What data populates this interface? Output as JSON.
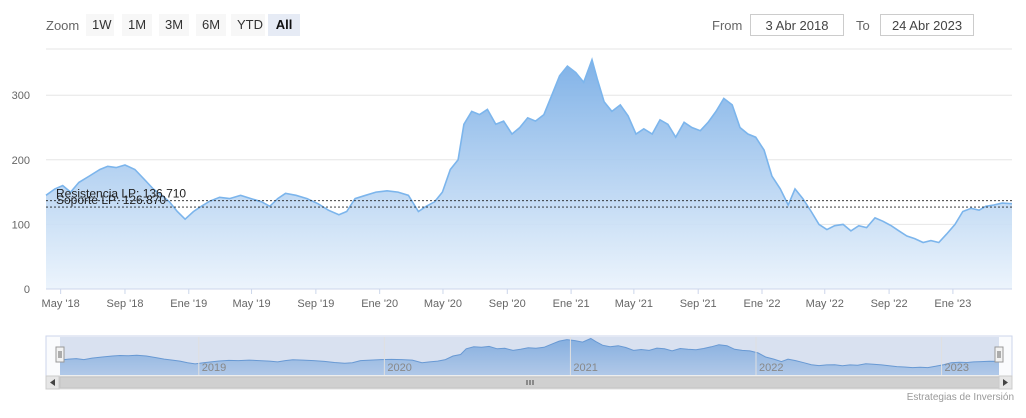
{
  "toolbar": {
    "zoom_label": "Zoom",
    "buttons": [
      "1W",
      "1M",
      "3M",
      "6M",
      "YTD",
      "All"
    ],
    "active": "All",
    "from_label": "From",
    "from_value": "3 Abr 2018",
    "to_label": "To",
    "to_value": "24 Abr 2023"
  },
  "credits": "Estrategias de Inversión",
  "colors": {
    "line": "#7cb5ec",
    "fill_top": "#7aaee6",
    "fill_bottom": "#eaf3fc",
    "grid": "#e6e6e6"
  },
  "chart_data": {
    "type": "area",
    "x_start": "2018-04-03",
    "x_end": "2023-04-24",
    "ylim": [
      0,
      370
    ],
    "yticks": [
      0,
      100,
      200,
      300
    ],
    "xticks": [
      {
        "date": "2018-05-01",
        "label": "May '18"
      },
      {
        "date": "2018-09-01",
        "label": "Sep '18"
      },
      {
        "date": "2019-01-01",
        "label": "Ene '19"
      },
      {
        "date": "2019-05-01",
        "label": "May '19"
      },
      {
        "date": "2019-09-01",
        "label": "Sep '19"
      },
      {
        "date": "2020-01-01",
        "label": "Ene '20"
      },
      {
        "date": "2020-05-01",
        "label": "May '20"
      },
      {
        "date": "2020-09-01",
        "label": "Sep '20"
      },
      {
        "date": "2021-01-01",
        "label": "Ene '21"
      },
      {
        "date": "2021-05-01",
        "label": "May '21"
      },
      {
        "date": "2021-09-01",
        "label": "Sep '21"
      },
      {
        "date": "2022-01-01",
        "label": "Ene '22"
      },
      {
        "date": "2022-05-01",
        "label": "May '22"
      },
      {
        "date": "2022-09-01",
        "label": "Sep '22"
      },
      {
        "date": "2023-01-01",
        "label": "Ene '23"
      }
    ],
    "navigator_labels": [
      {
        "date": "2019-01-01",
        "label": "2019"
      },
      {
        "date": "2020-01-01",
        "label": "2020"
      },
      {
        "date": "2021-01-01",
        "label": "2021"
      },
      {
        "date": "2022-01-01",
        "label": "2022"
      },
      {
        "date": "2023-01-01",
        "label": "2023"
      }
    ],
    "plot_lines": [
      {
        "value": 136.71,
        "label": "Resistencia LP: 136.710"
      },
      {
        "value": 126.87,
        "label": "Soporte LP: 126.870"
      }
    ],
    "grid": true,
    "legend": "none",
    "series": [
      {
        "points": [
          [
            "2018-04-03",
            145
          ],
          [
            "2018-04-20",
            155
          ],
          [
            "2018-05-05",
            160
          ],
          [
            "2018-05-20",
            150
          ],
          [
            "2018-06-05",
            165
          ],
          [
            "2018-06-25",
            175
          ],
          [
            "2018-07-15",
            185
          ],
          [
            "2018-07-30",
            190
          ],
          [
            "2018-08-15",
            188
          ],
          [
            "2018-09-01",
            192
          ],
          [
            "2018-09-20",
            185
          ],
          [
            "2018-10-10",
            168
          ],
          [
            "2018-10-25",
            155
          ],
          [
            "2018-11-10",
            145
          ],
          [
            "2018-11-25",
            135
          ],
          [
            "2018-12-10",
            120
          ],
          [
            "2018-12-25",
            108
          ],
          [
            "2019-01-10",
            120
          ],
          [
            "2019-01-25",
            128
          ],
          [
            "2019-02-10",
            136
          ],
          [
            "2019-03-01",
            142
          ],
          [
            "2019-03-20",
            140
          ],
          [
            "2019-04-10",
            145
          ],
          [
            "2019-04-30",
            140
          ],
          [
            "2019-05-20",
            135
          ],
          [
            "2019-06-05",
            128
          ],
          [
            "2019-06-20",
            140
          ],
          [
            "2019-07-05",
            148
          ],
          [
            "2019-07-25",
            145
          ],
          [
            "2019-08-15",
            140
          ],
          [
            "2019-09-05",
            132
          ],
          [
            "2019-09-25",
            122
          ],
          [
            "2019-10-15",
            115
          ],
          [
            "2019-10-30",
            120
          ],
          [
            "2019-11-15",
            140
          ],
          [
            "2019-12-05",
            145
          ],
          [
            "2019-12-25",
            150
          ],
          [
            "2020-01-15",
            152
          ],
          [
            "2020-02-05",
            150
          ],
          [
            "2020-02-25",
            145
          ],
          [
            "2020-03-15",
            120
          ],
          [
            "2020-03-30",
            128
          ],
          [
            "2020-04-15",
            135
          ],
          [
            "2020-04-30",
            150
          ],
          [
            "2020-05-15",
            185
          ],
          [
            "2020-05-30",
            200
          ],
          [
            "2020-06-10",
            255
          ],
          [
            "2020-06-25",
            275
          ],
          [
            "2020-07-10",
            270
          ],
          [
            "2020-07-25",
            278
          ],
          [
            "2020-08-10",
            255
          ],
          [
            "2020-08-25",
            260
          ],
          [
            "2020-09-10",
            240
          ],
          [
            "2020-09-25",
            250
          ],
          [
            "2020-10-10",
            265
          ],
          [
            "2020-10-25",
            260
          ],
          [
            "2020-11-10",
            270
          ],
          [
            "2020-11-25",
            300
          ],
          [
            "2020-12-10",
            330
          ],
          [
            "2020-12-25",
            345
          ],
          [
            "2021-01-10",
            335
          ],
          [
            "2021-01-25",
            320
          ],
          [
            "2021-02-10",
            355
          ],
          [
            "2021-02-20",
            325
          ],
          [
            "2021-03-05",
            290
          ],
          [
            "2021-03-20",
            275
          ],
          [
            "2021-04-05",
            285
          ],
          [
            "2021-04-20",
            268
          ],
          [
            "2021-05-05",
            240
          ],
          [
            "2021-05-20",
            248
          ],
          [
            "2021-06-05",
            240
          ],
          [
            "2021-06-20",
            262
          ],
          [
            "2021-07-05",
            255
          ],
          [
            "2021-07-20",
            235
          ],
          [
            "2021-08-05",
            258
          ],
          [
            "2021-08-20",
            250
          ],
          [
            "2021-09-05",
            245
          ],
          [
            "2021-09-20",
            258
          ],
          [
            "2021-10-05",
            275
          ],
          [
            "2021-10-20",
            295
          ],
          [
            "2021-11-05",
            285
          ],
          [
            "2021-11-20",
            250
          ],
          [
            "2021-12-05",
            240
          ],
          [
            "2021-12-20",
            235
          ],
          [
            "2022-01-05",
            215
          ],
          [
            "2022-01-20",
            175
          ],
          [
            "2022-02-05",
            155
          ],
          [
            "2022-02-20",
            130
          ],
          [
            "2022-03-05",
            155
          ],
          [
            "2022-03-20",
            140
          ],
          [
            "2022-04-05",
            120
          ],
          [
            "2022-04-20",
            100
          ],
          [
            "2022-05-05",
            92
          ],
          [
            "2022-05-20",
            98
          ],
          [
            "2022-06-05",
            100
          ],
          [
            "2022-06-20",
            90
          ],
          [
            "2022-07-05",
            98
          ],
          [
            "2022-07-20",
            95
          ],
          [
            "2022-08-05",
            110
          ],
          [
            "2022-08-20",
            105
          ],
          [
            "2022-09-05",
            98
          ],
          [
            "2022-09-20",
            90
          ],
          [
            "2022-10-05",
            82
          ],
          [
            "2022-10-20",
            78
          ],
          [
            "2022-11-05",
            72
          ],
          [
            "2022-11-20",
            75
          ],
          [
            "2022-12-05",
            72
          ],
          [
            "2022-12-20",
            85
          ],
          [
            "2023-01-05",
            100
          ],
          [
            "2023-01-20",
            120
          ],
          [
            "2023-02-05",
            125
          ],
          [
            "2023-02-20",
            122
          ],
          [
            "2023-03-05",
            128
          ],
          [
            "2023-03-20",
            130
          ],
          [
            "2023-04-05",
            133
          ],
          [
            "2023-04-24",
            132
          ]
        ]
      }
    ]
  }
}
